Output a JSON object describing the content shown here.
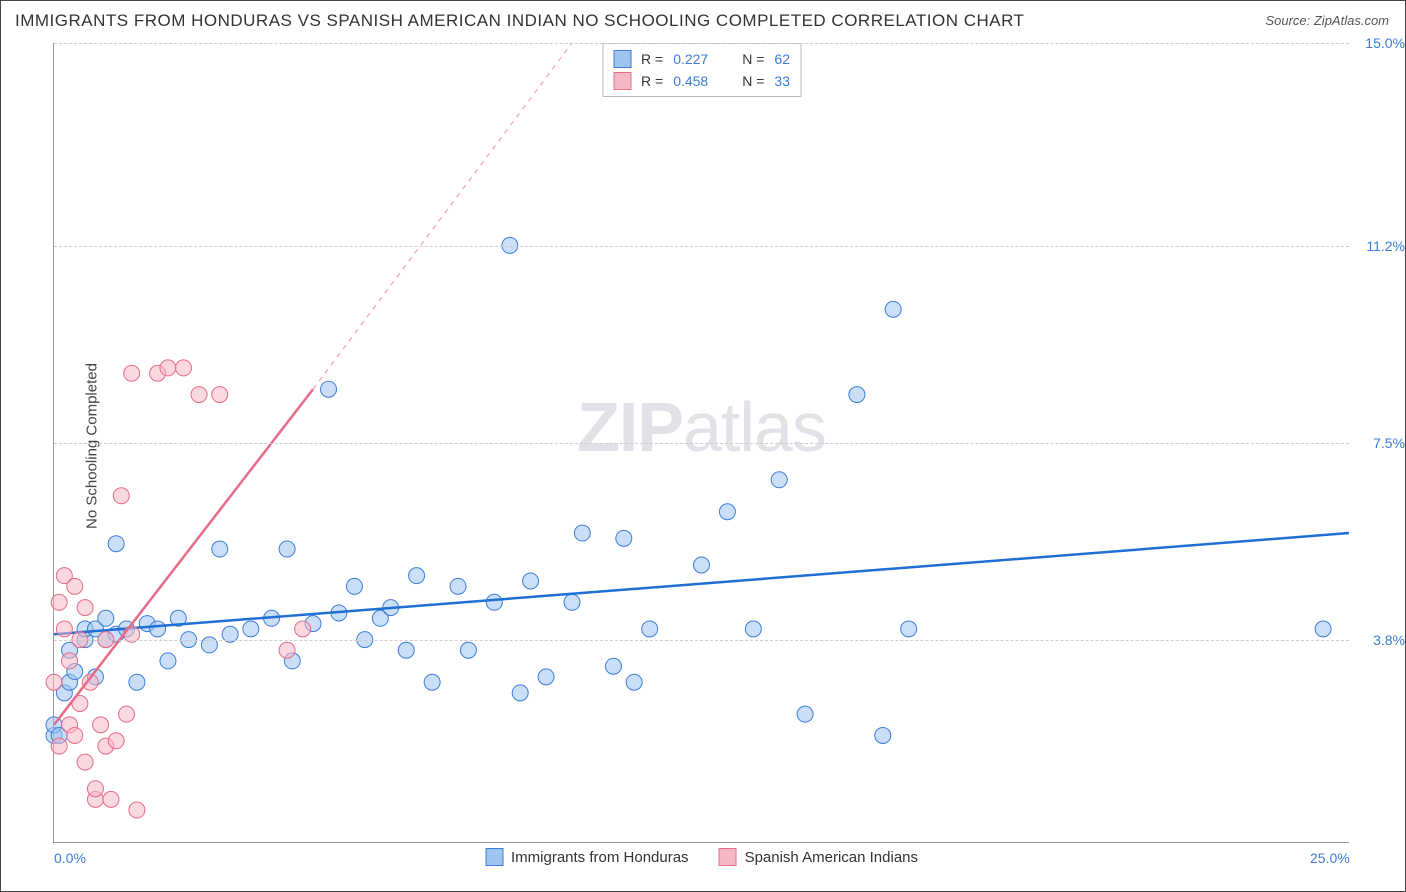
{
  "title": "IMMIGRANTS FROM HONDURAS VS SPANISH AMERICAN INDIAN NO SCHOOLING COMPLETED CORRELATION CHART",
  "source": "Source: ZipAtlas.com",
  "y_axis_label": "No Schooling Completed",
  "watermark": {
    "part1": "ZIP",
    "part2": "atlas"
  },
  "chart": {
    "type": "scatter-correlation",
    "background_color": "#ffffff",
    "grid_color": "#cccccc",
    "axis_color": "#999999",
    "text_color": "#333333",
    "tick_color": "#3b7dd8",
    "xlim": [
      0.0,
      25.0
    ],
    "ylim": [
      0.0,
      15.0
    ],
    "x_ticks": [
      {
        "value": 0.0,
        "label": "0.0%"
      },
      {
        "value": 25.0,
        "label": "25.0%"
      }
    ],
    "y_ticks": [
      {
        "value": 3.8,
        "label": "3.8%"
      },
      {
        "value": 7.5,
        "label": "7.5%"
      },
      {
        "value": 11.2,
        "label": "11.2%"
      },
      {
        "value": 15.0,
        "label": "15.0%"
      }
    ],
    "marker_radius": 8,
    "marker_opacity": 0.55,
    "trend_line_width": 2.5,
    "series": [
      {
        "id": "honduras",
        "label": "Immigrants from Honduras",
        "fill_color": "#9ec5f0",
        "stroke_color": "#3b7dd8",
        "line_color": "#1f6fd4",
        "R": "0.227",
        "N": "62",
        "trend": {
          "x1": 0.0,
          "y1": 3.9,
          "x2": 25.0,
          "y2": 5.8,
          "dashed": false
        },
        "points": [
          [
            0.0,
            2.0
          ],
          [
            0.0,
            2.2
          ],
          [
            0.1,
            2.0
          ],
          [
            0.2,
            2.8
          ],
          [
            0.3,
            3.0
          ],
          [
            0.3,
            3.6
          ],
          [
            0.4,
            3.2
          ],
          [
            0.6,
            3.8
          ],
          [
            0.6,
            4.0
          ],
          [
            0.8,
            3.1
          ],
          [
            0.8,
            4.0
          ],
          [
            1.0,
            4.2
          ],
          [
            1.0,
            3.8
          ],
          [
            1.2,
            3.9
          ],
          [
            1.2,
            5.6
          ],
          [
            1.4,
            4.0
          ],
          [
            1.6,
            3.0
          ],
          [
            1.8,
            4.1
          ],
          [
            2.0,
            4.0
          ],
          [
            2.2,
            3.4
          ],
          [
            2.4,
            4.2
          ],
          [
            2.6,
            3.8
          ],
          [
            3.0,
            3.7
          ],
          [
            3.2,
            5.5
          ],
          [
            3.4,
            3.9
          ],
          [
            3.8,
            4.0
          ],
          [
            4.2,
            4.2
          ],
          [
            4.5,
            5.5
          ],
          [
            4.6,
            3.4
          ],
          [
            5.0,
            4.1
          ],
          [
            5.3,
            8.5
          ],
          [
            5.5,
            4.3
          ],
          [
            5.8,
            4.8
          ],
          [
            6.0,
            3.8
          ],
          [
            6.3,
            4.2
          ],
          [
            6.5,
            4.4
          ],
          [
            6.8,
            3.6
          ],
          [
            7.0,
            5.0
          ],
          [
            7.3,
            3.0
          ],
          [
            7.8,
            4.8
          ],
          [
            8.0,
            3.6
          ],
          [
            8.5,
            4.5
          ],
          [
            8.8,
            11.2
          ],
          [
            9.0,
            2.8
          ],
          [
            9.2,
            4.9
          ],
          [
            9.5,
            3.1
          ],
          [
            10.0,
            4.5
          ],
          [
            10.2,
            5.8
          ],
          [
            10.8,
            3.3
          ],
          [
            11.0,
            5.7
          ],
          [
            11.2,
            3.0
          ],
          [
            11.5,
            4.0
          ],
          [
            12.5,
            5.2
          ],
          [
            13.0,
            6.2
          ],
          [
            13.5,
            4.0
          ],
          [
            14.0,
            6.8
          ],
          [
            14.5,
            2.4
          ],
          [
            15.5,
            8.4
          ],
          [
            16.2,
            10.0
          ],
          [
            16.0,
            2.0
          ],
          [
            16.5,
            4.0
          ],
          [
            24.5,
            4.0
          ]
        ]
      },
      {
        "id": "spanish_ai",
        "label": "Spanish American Indians",
        "fill_color": "#f6b8c6",
        "stroke_color": "#e56b87",
        "line_color": "#e56b87",
        "R": "0.458",
        "N": "33",
        "trend": {
          "x1": 0.0,
          "y1": 2.2,
          "x2": 5.0,
          "y2": 8.5,
          "dashed_extend": {
            "x2": 10.0,
            "y2": 15.0
          }
        },
        "points": [
          [
            0.0,
            3.0
          ],
          [
            0.1,
            4.5
          ],
          [
            0.1,
            1.8
          ],
          [
            0.2,
            4.0
          ],
          [
            0.2,
            5.0
          ],
          [
            0.3,
            3.4
          ],
          [
            0.3,
            2.2
          ],
          [
            0.4,
            4.8
          ],
          [
            0.4,
            2.0
          ],
          [
            0.5,
            3.8
          ],
          [
            0.5,
            2.6
          ],
          [
            0.6,
            1.5
          ],
          [
            0.6,
            4.4
          ],
          [
            0.7,
            3.0
          ],
          [
            0.8,
            0.8
          ],
          [
            0.8,
            1.0
          ],
          [
            0.9,
            2.2
          ],
          [
            1.0,
            3.8
          ],
          [
            1.0,
            1.8
          ],
          [
            1.1,
            0.8
          ],
          [
            1.2,
            1.9
          ],
          [
            1.3,
            6.5
          ],
          [
            1.4,
            2.4
          ],
          [
            1.5,
            3.9
          ],
          [
            1.5,
            8.8
          ],
          [
            1.6,
            0.6
          ],
          [
            2.0,
            8.8
          ],
          [
            2.2,
            8.9
          ],
          [
            2.5,
            8.9
          ],
          [
            2.8,
            8.4
          ],
          [
            3.2,
            8.4
          ],
          [
            4.5,
            3.6
          ],
          [
            4.8,
            4.0
          ]
        ]
      }
    ],
    "legend_top": {
      "R_label": "R =",
      "N_label": "N ="
    }
  }
}
